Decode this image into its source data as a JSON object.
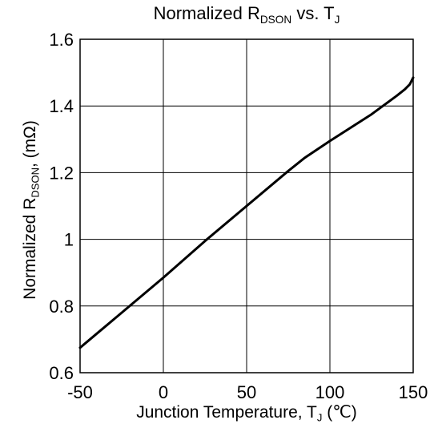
{
  "chart_data": {
    "type": "line",
    "title": {
      "main": "Normalized R",
      "sub": "DSON",
      "rest": " vs. T",
      "sub2": "J"
    },
    "xlabel": {
      "main": "Junction Temperature, T",
      "sub": "J",
      "rest": " (℃)"
    },
    "ylabel": {
      "main": "Normalized R",
      "sub": "DSON",
      "rest": ", (mΩ)"
    },
    "xlim": [
      -50,
      150
    ],
    "ylim": [
      0.6,
      1.6
    ],
    "x_ticks": [
      -50,
      0,
      50,
      100,
      150
    ],
    "x_tick_labels": [
      "-50",
      "0",
      "50",
      "100",
      "150"
    ],
    "y_ticks": [
      0.6,
      0.8,
      1.0,
      1.2,
      1.4,
      1.6
    ],
    "y_tick_labels": [
      "0.6",
      "0.8",
      "1",
      "1.2",
      "1.4",
      "1.6"
    ],
    "grid": true,
    "series": [
      {
        "color": "#000000",
        "x": [
          -50,
          -25,
          0,
          25,
          50,
          75,
          85,
          100,
          125,
          140,
          145,
          148,
          150
        ],
        "y": [
          0.675,
          0.78,
          0.885,
          0.995,
          1.1,
          1.205,
          1.245,
          1.295,
          1.375,
          1.43,
          1.45,
          1.465,
          1.485
        ]
      }
    ]
  }
}
